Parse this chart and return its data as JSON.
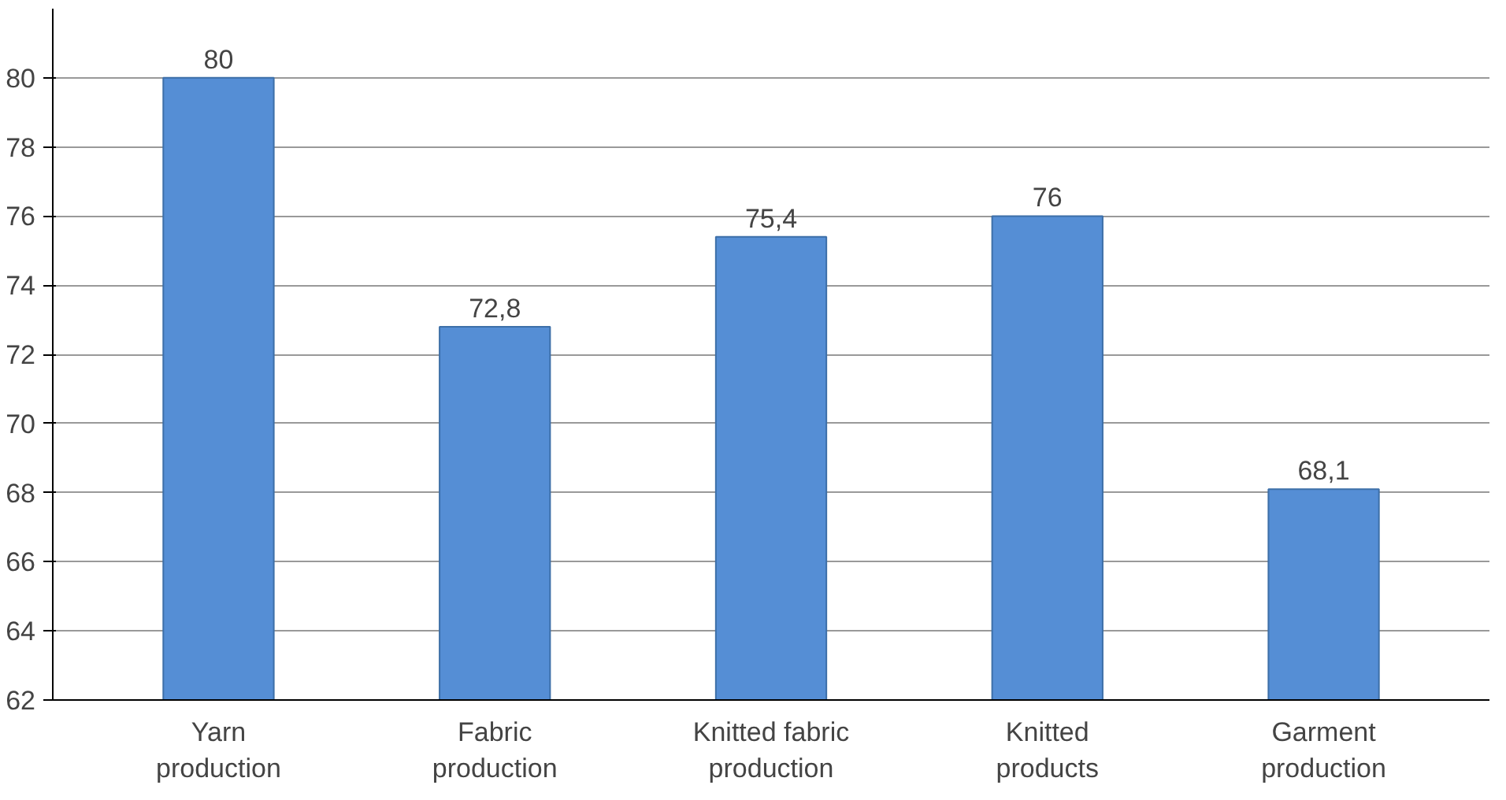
{
  "chart_data": {
    "type": "bar",
    "categories": [
      "Yarn production",
      "Fabric production",
      "Knitted fabric production",
      "Knitted products",
      "Garment production"
    ],
    "values": [
      80,
      72.8,
      75.4,
      76,
      68.1
    ],
    "value_labels": [
      "80",
      "72,8",
      "75,4",
      "76",
      "68,1"
    ],
    "color": "#558ed5",
    "ylim": [
      62,
      82
    ],
    "yticks": [
      62,
      64,
      66,
      68,
      70,
      72,
      74,
      76,
      78,
      80
    ],
    "grid": "y"
  }
}
